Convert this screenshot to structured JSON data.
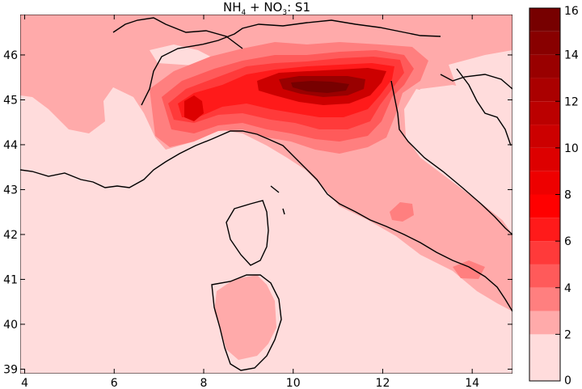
{
  "title": {
    "prefix": "NH",
    "sub1": "4",
    "middle": " + NO",
    "sub2": "3",
    "suffix": ": S1"
  },
  "x_ticks": [
    "4",
    "6",
    "8",
    "10",
    "12",
    "14"
  ],
  "y_ticks": [
    "39",
    "40",
    "41",
    "42",
    "43",
    "44",
    "45",
    "46"
  ],
  "colorbar": {
    "ticks": [
      "0",
      "2",
      "4",
      "6",
      "8",
      "10",
      "12",
      "14",
      "16"
    ],
    "levels": [
      0,
      2,
      3,
      4,
      5,
      6,
      7,
      8,
      9,
      10,
      11,
      12,
      13,
      14,
      15,
      16
    ],
    "colors": [
      "#ffdcdc",
      "#ffaaaa",
      "#ff7f7f",
      "#ff5a5a",
      "#ff3a3a",
      "#ff1a1a",
      "#ff0000",
      "#ee0000",
      "#dd0000",
      "#cc0000",
      "#bb0000",
      "#aa0000",
      "#990000",
      "#880000",
      "#770000"
    ]
  },
  "map": {
    "lon_range": [
      3.9,
      14.9
    ],
    "lat_range": [
      38.9,
      46.9
    ]
  }
}
